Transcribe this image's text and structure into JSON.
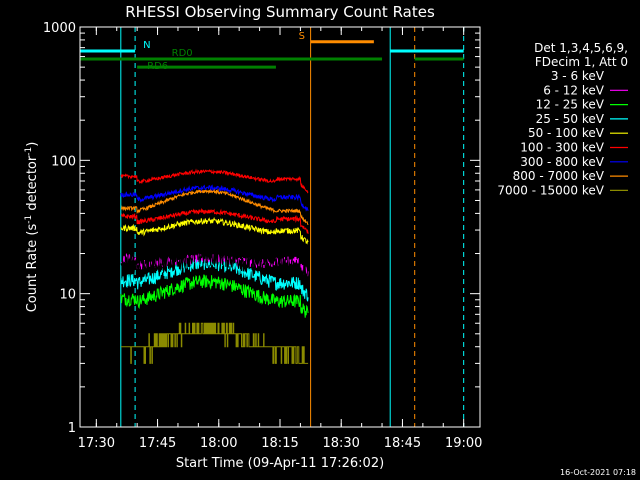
{
  "chart_data": {
    "type": "line",
    "title": "RHESSI Observing Summary Count Rates",
    "xlabel": "Start Time (09-Apr-11 17:26:02)",
    "ylabel_main": "Count Rate (s",
    "ylabel_sup1": "-1",
    "ylabel_mid": " detector",
    "ylabel_sup2": "-1",
    "ylabel_end": ")",
    "y_scale": "log",
    "ylim": [
      1,
      1000
    ],
    "xlim_minutes": [
      0,
      98
    ],
    "x_ticks": [
      {
        "label": "17:30",
        "m": 4
      },
      {
        "label": "17:45",
        "m": 19
      },
      {
        "label": "18:00",
        "m": 34
      },
      {
        "label": "18:15",
        "m": 49
      },
      {
        "label": "18:30",
        "m": 64
      },
      {
        "label": "18:45",
        "m": 79
      },
      {
        "label": "19:00",
        "m": 94
      }
    ],
    "y_ticks": [
      {
        "label": "1",
        "v": 1
      },
      {
        "label": "10",
        "v": 10
      },
      {
        "label": "100",
        "v": 100
      },
      {
        "label": "1000",
        "v": 1000
      }
    ],
    "legend_header": [
      "Det 1,3,4,5,6,9,",
      "FDecim 1, Att 0"
    ],
    "series": [
      {
        "name": "3 - 6 keV",
        "color": "#000000",
        "base": 15,
        "amp": 0.3,
        "noise": 0.18,
        "step": 0
      },
      {
        "name": "6 - 12 keV",
        "color": "#ff00ff",
        "base": 16,
        "amp": 0.15,
        "noise": 0.08,
        "step": 0
      },
      {
        "name": "12 - 25 keV",
        "color": "#00ff00",
        "base": 8,
        "amp": 0.55,
        "noise": 0.12,
        "step": 0
      },
      {
        "name": "25 - 50 keV",
        "color": "#00ffff",
        "base": 11,
        "amp": 0.55,
        "noise": 0.12,
        "step": 0
      },
      {
        "name": "50 - 100 keV",
        "color": "#ffff00",
        "base": 27,
        "amp": 0.3,
        "noise": 0.05,
        "step": 0
      },
      {
        "name": "100 - 300 keV",
        "color": "#ff0000",
        "base": 33,
        "amp": 0.25,
        "noise": 0.04,
        "step": 0
      },
      {
        "name": "300 - 800 keV",
        "color": "#0000ff",
        "base": 48,
        "amp": 0.3,
        "noise": 0.04,
        "step": 0
      },
      {
        "name": "800 - 7000 keV",
        "color": "#ff8c00",
        "base": 38,
        "amp": 0.55,
        "noise": 0.03,
        "step": 0
      },
      {
        "name": "7000 - 15000 keV",
        "color": "#8b8b00",
        "base": 3.4,
        "amp": 0.6,
        "noise": 0.15,
        "step": 1
      }
    ],
    "red_high": {
      "color": "#ff0000",
      "base": 66,
      "amp": 0.25,
      "noise": 0.03
    },
    "observation_windows": [
      [
        10,
        56
      ]
    ],
    "flag_lines": [
      {
        "label": "N",
        "color": "#00ffff",
        "y": 660,
        "segments": [
          [
            0,
            13.5
          ],
          [
            76,
            94
          ]
        ]
      },
      {
        "label": "S",
        "color": "#ff8c00",
        "y": 775,
        "segments": [
          [
            56.5,
            72
          ]
        ]
      },
      {
        "label": "RD0",
        "color": "#008000",
        "y": 575,
        "segments": [
          [
            0,
            74
          ],
          [
            82,
            94
          ]
        ]
      },
      {
        "label": "RD6",
        "color": "#008000",
        "y": 500,
        "segments": [
          [
            14,
            48
          ]
        ]
      }
    ],
    "vertical_markers": [
      {
        "color": "#00ffff",
        "m": 0,
        "dashed": false
      },
      {
        "color": "#00ffff",
        "m": 10,
        "dashed": false
      },
      {
        "color": "#00ffff",
        "m": 13.5,
        "dashed": true
      },
      {
        "color": "#ff8c00",
        "m": 56.5,
        "dashed": false
      },
      {
        "color": "#00ffff",
        "m": 76,
        "dashed": false
      },
      {
        "color": "#ff8c00",
        "m": 82,
        "dashed": true
      },
      {
        "color": "#00ffff",
        "m": 94,
        "dashed": true
      }
    ],
    "footer_timestamp": "16-Oct-2021 07:18"
  }
}
